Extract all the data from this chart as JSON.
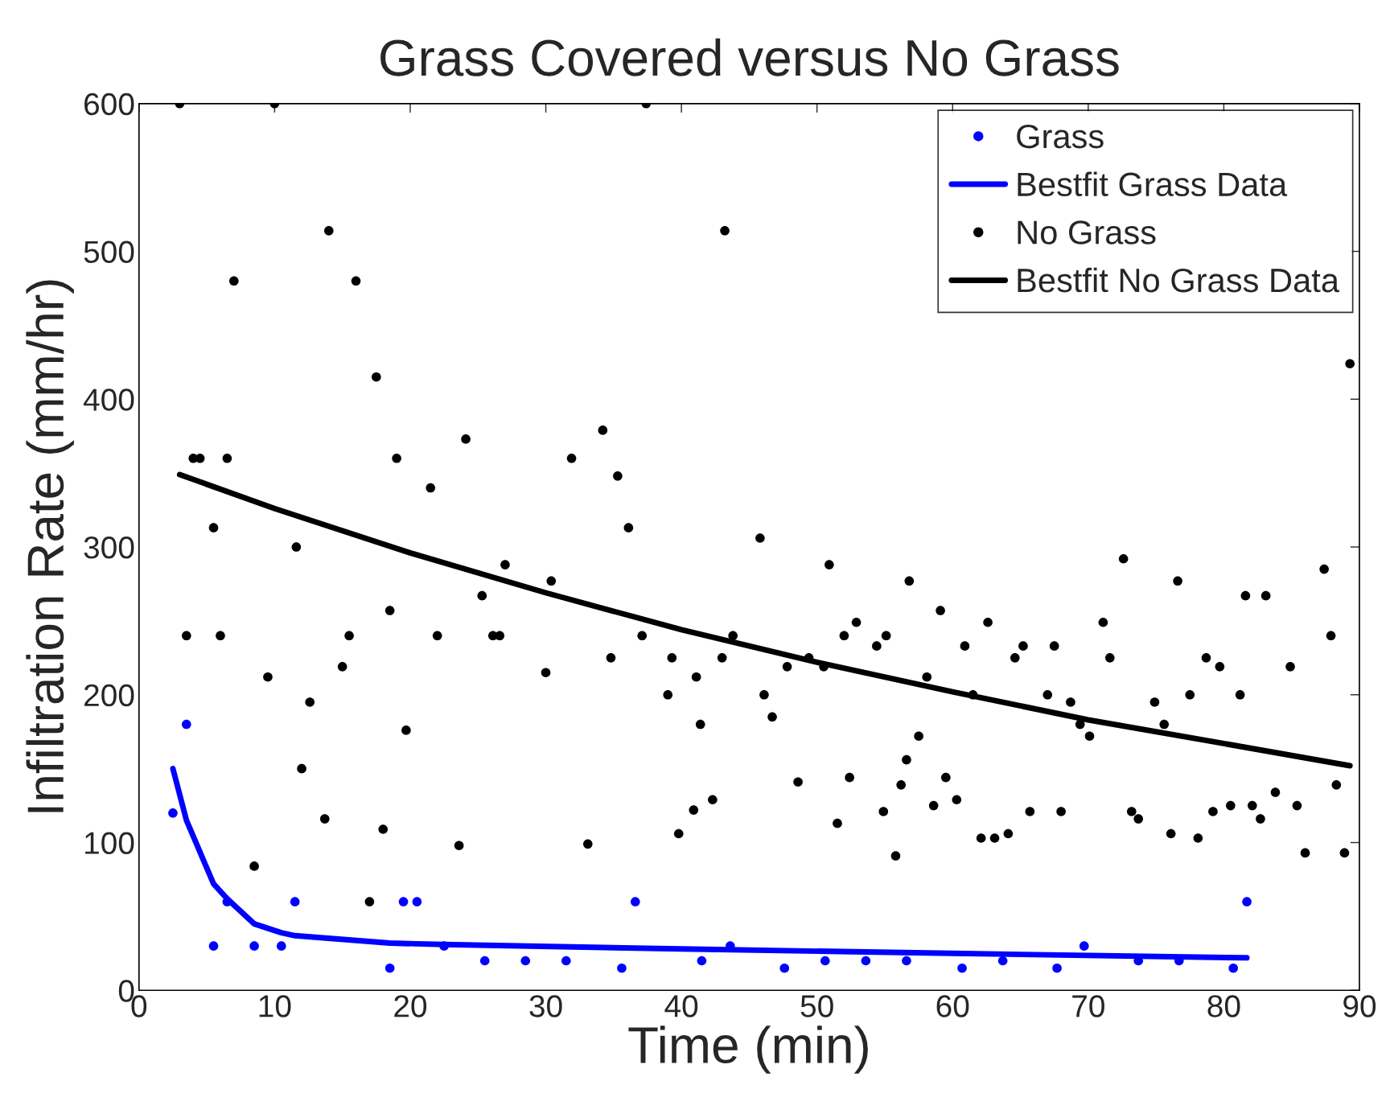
{
  "chart_data": {
    "type": "scatter",
    "title": "Grass Covered versus No Grass",
    "xlabel": "Time (min)",
    "ylabel": "Infiltration Rate (mm/hr)",
    "xlim": [
      0,
      90
    ],
    "ylim": [
      0,
      600
    ],
    "xticks": [
      0,
      10,
      20,
      30,
      40,
      50,
      60,
      70,
      80,
      90
    ],
    "yticks": [
      0,
      100,
      200,
      300,
      400,
      500,
      600
    ],
    "grid": false,
    "legend": "top right",
    "marker": "circle",
    "series": [
      {
        "name": "Grass",
        "color": "#0000ff",
        "x": [
          2.5,
          3.5,
          5.5,
          6.5,
          8.5,
          10.5,
          11.5,
          18.5,
          19.5,
          20.5,
          22.5,
          25.5,
          28.5,
          31.5,
          35.6,
          36.6,
          41.5,
          43.6,
          47.6,
          50.6,
          53.6,
          56.6,
          60.7,
          63.7,
          67.7,
          69.7,
          73.7,
          76.7,
          80.7,
          81.7
        ],
        "values": [
          120,
          180,
          30,
          60,
          30,
          30,
          60,
          15,
          60,
          60,
          30,
          20,
          20,
          20,
          15,
          60,
          20,
          30,
          15,
          20,
          20,
          20,
          15,
          20,
          15,
          30,
          20,
          20,
          15,
          60
        ]
      },
      {
        "name": "Bestfit Grass Data",
        "type": "line",
        "color": "#0000ff",
        "marker": "none",
        "line_style": "solid",
        "x": [
          2.5,
          3.5,
          5.5,
          6.5,
          8.5,
          10.5,
          11.5,
          18.5,
          22.5,
          40,
          60,
          81.7
        ],
        "values": [
          150,
          115,
          72,
          62,
          45,
          39,
          37,
          32,
          31,
          28,
          25,
          22
        ]
      },
      {
        "name": "No Grass",
        "color": "#000000",
        "x": [
          3.0,
          3.5,
          4.0,
          4.5,
          5.5,
          6.0,
          6.5,
          7.0,
          8.5,
          9.5,
          10.0,
          11.6,
          12.0,
          12.6,
          13.7,
          14.0,
          15.0,
          15.5,
          16.0,
          17.0,
          17.5,
          18.0,
          18.5,
          19.0,
          19.7,
          21.5,
          22.0,
          23.6,
          24.1,
          25.3,
          26.1,
          26.6,
          27.0,
          30.0,
          30.4,
          31.9,
          33.1,
          34.2,
          34.8,
          35.3,
          36.1,
          37.1,
          37.4,
          39.0,
          39.3,
          39.8,
          40.9,
          41.1,
          41.4,
          42.3,
          43.0,
          43.2,
          43.8,
          45.8,
          46.1,
          46.7,
          47.8,
          48.6,
          49.4,
          50.5,
          50.9,
          51.5,
          52.0,
          52.4,
          52.9,
          54.4,
          54.9,
          55.1,
          55.8,
          56.2,
          56.6,
          56.8,
          57.5,
          58.1,
          58.6,
          59.1,
          59.5,
          60.3,
          60.9,
          61.5,
          62.1,
          62.6,
          63.1,
          64.1,
          64.6,
          65.2,
          65.7,
          67.0,
          67.5,
          68.0,
          68.7,
          69.4,
          70.1,
          71.1,
          71.6,
          72.6,
          73.2,
          73.7,
          74.9,
          75.6,
          76.1,
          76.6,
          77.5,
          78.1,
          78.7,
          79.2,
          79.7,
          80.5,
          81.2,
          81.6,
          82.1,
          82.7,
          83.1,
          83.8,
          84.9,
          85.4,
          86.0,
          87.4,
          87.9,
          88.3,
          88.9,
          89.3
        ],
        "values": [
          600,
          240,
          360,
          360,
          313,
          240,
          360,
          480,
          84,
          212,
          600,
          300,
          150,
          195,
          116,
          514,
          219,
          240,
          480,
          60,
          415,
          109,
          257,
          360,
          176,
          340,
          240,
          98,
          373,
          267,
          240,
          240,
          288,
          215,
          277,
          360,
          99,
          379,
          225,
          348,
          313,
          240,
          600,
          200,
          225,
          106,
          122,
          212,
          180,
          129,
          225,
          514,
          240,
          306,
          200,
          185,
          219,
          141,
          225,
          219,
          288,
          113,
          240,
          144,
          249,
          233,
          121,
          240,
          91,
          139,
          156,
          277,
          172,
          212,
          125,
          257,
          144,
          129,
          233,
          200,
          103,
          249,
          103,
          106,
          225,
          233,
          121,
          200,
          233,
          121,
          195,
          180,
          172,
          249,
          225,
          292,
          121,
          116,
          195,
          180,
          106,
          277,
          200,
          103,
          225,
          121,
          219,
          125,
          200,
          267,
          125,
          116,
          267,
          134,
          219,
          125,
          93,
          285,
          240,
          139,
          93,
          424
        ]
      },
      {
        "name": "Bestfit No Grass Data",
        "type": "line",
        "color": "#000000",
        "marker": "none",
        "line_style": "solid",
        "x": [
          3,
          10,
          20,
          30,
          40,
          50,
          60,
          70,
          80,
          89.3
        ],
        "values": [
          349,
          326,
          296,
          269,
          244,
          222,
          202,
          183,
          167,
          152
        ]
      }
    ]
  }
}
